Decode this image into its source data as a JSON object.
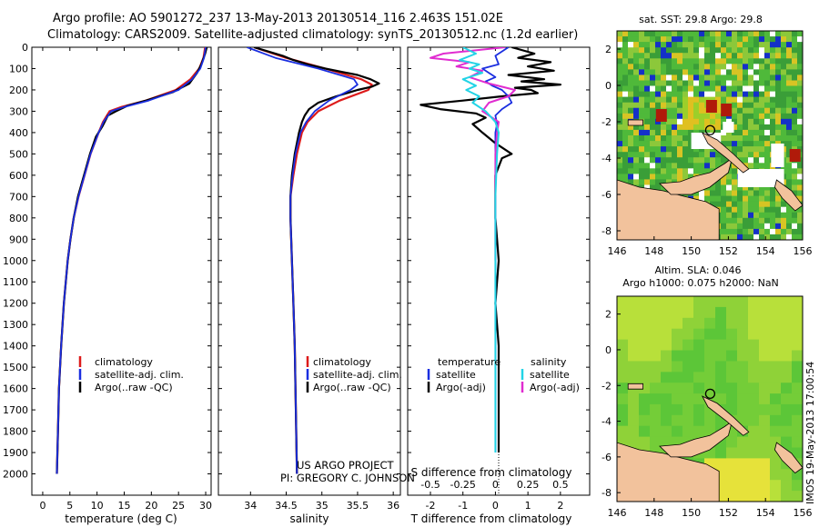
{
  "header": {
    "title_line1": "Argo profile: AO 5901272_237 13-May-2013 20130514_116 2.463S 151.02E",
    "title_line2": "Climatology: CARS2009. Satellite-adjusted climatology: synTS_20130512.nc (1.2d earlier)"
  },
  "colors": {
    "climatology": "#dd1a1a",
    "satellite": "#1a2ee0",
    "argo": "#000000",
    "sat_salinity": "#22d4e6",
    "argo_salinity": "#e02cd0",
    "land": "#f2c29c"
  },
  "chart_data": [
    {
      "type": "line",
      "id": "temperature",
      "xlabel": "temperature (deg C)",
      "ylabel": "",
      "xlim": [
        -2,
        31
      ],
      "ylim": [
        0,
        2100
      ],
      "xticks": [
        "0",
        "5",
        "10",
        "15",
        "20",
        "25",
        "30"
      ],
      "yticks": [
        "0",
        "100",
        "200",
        "300",
        "400",
        "500",
        "600",
        "700",
        "800",
        "900",
        "1000",
        "1100",
        "1200",
        "1300",
        "1400",
        "1500",
        "1600",
        "1700",
        "1800",
        "1900",
        "2000"
      ],
      "legend": [
        "climatology",
        "satellite-adj. clim.",
        "Argo(..raw -QC)"
      ],
      "series": [
        {
          "name": "climatology",
          "depth": [
            0,
            50,
            100,
            150,
            200,
            250,
            280,
            300,
            350,
            400,
            500,
            600,
            700,
            800,
            900,
            1000,
            1200,
            1400,
            1600,
            1800,
            2000
          ],
          "values": [
            29.9,
            29.6,
            28.8,
            27.2,
            24.5,
            19,
            14.5,
            12.3,
            11.1,
            10.3,
            8.8,
            7.7,
            6.6,
            5.7,
            5.1,
            4.6,
            3.9,
            3.4,
            3.0,
            2.8,
            2.6
          ]
        },
        {
          "name": "satellite-adj. clim.",
          "depth": [
            0,
            50,
            100,
            150,
            200,
            250,
            280,
            300,
            350,
            400,
            500,
            600,
            700,
            800,
            900,
            1000,
            1200,
            1400,
            1600,
            1800,
            2000
          ],
          "values": [
            30.0,
            29.7,
            29.0,
            27.5,
            25.0,
            19.5,
            15,
            12.6,
            11.2,
            10.3,
            8.8,
            7.7,
            6.6,
            5.7,
            5.1,
            4.6,
            3.9,
            3.4,
            3.0,
            2.8,
            2.6
          ]
        },
        {
          "name": "Argo(..raw -QC)",
          "depth": [
            0,
            30,
            80,
            120,
            170,
            210,
            250,
            275,
            300,
            320,
            370,
            420,
            500,
            600,
            700,
            800,
            900,
            1000,
            1200,
            1400,
            1600,
            1800,
            2000
          ],
          "values": [
            30.2,
            29.9,
            29.2,
            28.4,
            27.0,
            24.0,
            19.0,
            15.5,
            13.5,
            12.0,
            11.0,
            9.8,
            8.7,
            7.6,
            6.5,
            5.7,
            5.1,
            4.6,
            3.9,
            3.4,
            3.0,
            2.8,
            2.6
          ]
        }
      ]
    },
    {
      "type": "line",
      "id": "salinity",
      "xlabel": "salinity",
      "ylabel": "",
      "xlim": [
        33.55,
        36.1
      ],
      "ylim": [
        0,
        2100
      ],
      "xticks": [
        "34",
        "34.5",
        "35",
        "35.5",
        "36"
      ],
      "legend": [
        "climatology",
        "satellite-adj. clim.",
        "Argo(..raw -QC)"
      ],
      "annotation": [
        "US ARGO PROJECT",
        "PI: GREGORY C. JOHNSON"
      ],
      "series": [
        {
          "name": "climatology",
          "depth": [
            0,
            50,
            100,
            150,
            175,
            200,
            250,
            300,
            350,
            400,
            500,
            600,
            700,
            800,
            900,
            1000,
            1200,
            1400,
            1600,
            1800,
            2000
          ],
          "values": [
            34.05,
            34.5,
            35.05,
            35.55,
            35.7,
            35.65,
            35.25,
            34.95,
            34.8,
            34.72,
            34.65,
            34.6,
            34.56,
            34.56,
            34.57,
            34.58,
            34.6,
            34.62,
            34.63,
            34.64,
            34.65
          ]
        },
        {
          "name": "satellite-adj. clim.",
          "depth": [
            0,
            50,
            100,
            150,
            175,
            200,
            250,
            300,
            350,
            400,
            500,
            600,
            700,
            800,
            900,
            1000,
            1200,
            1400,
            1600,
            1800,
            2000
          ],
          "values": [
            33.95,
            34.35,
            34.95,
            35.45,
            35.5,
            35.4,
            35.1,
            34.9,
            34.78,
            34.7,
            34.63,
            34.59,
            34.56,
            34.56,
            34.57,
            34.58,
            34.6,
            34.62,
            34.63,
            34.64,
            34.65
          ]
        },
        {
          "name": "Argo(..raw -QC)",
          "depth": [
            0,
            20,
            40,
            60,
            80,
            100,
            130,
            150,
            170,
            185,
            200,
            230,
            260,
            290,
            320,
            350,
            400,
            500,
            600,
            700,
            800,
            900,
            1000,
            1200,
            1400,
            1600,
            1800,
            2000
          ],
          "values": [
            34.05,
            34.25,
            34.45,
            34.6,
            34.8,
            35.05,
            35.5,
            35.68,
            35.8,
            35.7,
            35.5,
            35.2,
            34.95,
            34.82,
            34.76,
            34.72,
            34.68,
            34.62,
            34.58,
            34.56,
            34.56,
            34.57,
            34.58,
            34.6,
            34.62,
            34.63,
            34.64,
            34.65
          ]
        }
      ]
    },
    {
      "type": "line",
      "id": "difference",
      "xlabel": "T difference from climatology",
      "xlabel_top": "S difference from climatology",
      "xlim": [
        -2.7,
        2.9
      ],
      "ylim": [
        0,
        2100
      ],
      "xticks": [
        "-2",
        "-1",
        "0",
        "1",
        "2"
      ],
      "xticks_top": [
        "-0.5",
        "-0.25",
        "0",
        "0.25",
        "0.5"
      ],
      "legend_titles": [
        "temperature",
        "salinity"
      ],
      "legend": [
        "satellite",
        "Argo(-adj)",
        "satellite",
        "Argo(-adj)"
      ],
      "series": [
        {
          "name": "temperature satellite",
          "depth": [
            0,
            40,
            80,
            100,
            120,
            140,
            160,
            180,
            200,
            230,
            260,
            290,
            320,
            360,
            400,
            500,
            600,
            800,
            1000,
            1200,
            1400,
            1600,
            1800,
            1900
          ],
          "values": [
            0.4,
            0.0,
            0.1,
            -0.4,
            -0.2,
            0.0,
            -0.3,
            -0.1,
            0.2,
            0.4,
            0.5,
            0.2,
            0.0,
            0.05,
            0.0,
            0.0,
            0.0,
            0.0,
            0.0,
            0.0,
            0.0,
            0.0,
            0.0,
            0.0
          ]
        },
        {
          "name": "temperature Argo(-adj)",
          "depth": [
            0,
            30,
            50,
            70,
            90,
            110,
            130,
            150,
            160,
            175,
            190,
            200,
            215,
            230,
            250,
            270,
            290,
            310,
            330,
            360,
            400,
            450,
            500,
            520,
            560,
            600,
            700,
            800,
            1000,
            1200,
            1400,
            1600,
            1800,
            1900
          ],
          "values": [
            0.5,
            1.2,
            0.7,
            1.7,
            1.0,
            1.8,
            0.4,
            1.5,
            0.8,
            2.0,
            0.6,
            1.1,
            1.3,
            0.2,
            -1.0,
            -2.3,
            -1.7,
            -0.6,
            -0.3,
            -0.7,
            -0.4,
            0.0,
            0.5,
            0.2,
            0.1,
            0.0,
            0.0,
            0.0,
            0.1,
            0.0,
            0.1,
            0.1,
            0.1,
            0.1
          ]
        },
        {
          "name": "salinity satellite",
          "depth": [
            0,
            30,
            60,
            80,
            100,
            120,
            150,
            180,
            200,
            230,
            260,
            300,
            350,
            400,
            500,
            700,
            900,
            1200,
            1500,
            1800,
            1900
          ],
          "values": [
            -1.0,
            -0.6,
            -1.1,
            -0.5,
            -0.8,
            -0.4,
            -1.0,
            -0.6,
            -0.9,
            -0.5,
            -0.7,
            -0.3,
            0.0,
            0.1,
            0.05,
            0.0,
            0.0,
            0.0,
            0.0,
            0.0,
            0.0
          ]
        },
        {
          "name": "salinity Argo(-adj)",
          "depth": [
            0,
            30,
            50,
            70,
            90,
            110,
            140,
            170,
            200,
            230,
            260,
            300,
            350,
            400,
            500,
            600,
            800,
            1000
          ],
          "values": [
            0.3,
            -1.6,
            -2.0,
            -0.8,
            -1.2,
            -0.4,
            -0.8,
            -0.2,
            0.6,
            0.4,
            -0.2,
            -0.4,
            0.1,
            0.05,
            0.0,
            0.0,
            0.0,
            0.0
          ]
        }
      ]
    },
    {
      "type": "heatmap",
      "id": "sst_map",
      "title": "sat. SST: 29.8 Argo: 29.8",
      "xlim": [
        146,
        156
      ],
      "ylim": [
        -8.5,
        3
      ],
      "xticks": [
        "146",
        "148",
        "150",
        "152",
        "154",
        "156"
      ],
      "yticks": [
        "2",
        "0",
        "-2",
        "-4",
        "-6",
        "-8"
      ],
      "argo_position": {
        "lon": 151.02,
        "lat": -2.463
      }
    },
    {
      "type": "heatmap",
      "id": "sla_map",
      "title_line1": "Altim. SLA: 0.046",
      "title_line2": "Argo h1000: 0.075 h2000: NaN",
      "xlim": [
        146,
        156
      ],
      "ylim": [
        -8.5,
        3
      ],
      "xticks": [
        "146",
        "148",
        "150",
        "152",
        "154",
        "156"
      ],
      "yticks": [
        "2",
        "0",
        "-2",
        "-4",
        "-6",
        "-8"
      ],
      "argo_position": {
        "lon": 151.02,
        "lat": -2.463
      }
    }
  ],
  "footer": {
    "timestamp": "IMOS 19-May-2013 17:00:54"
  }
}
